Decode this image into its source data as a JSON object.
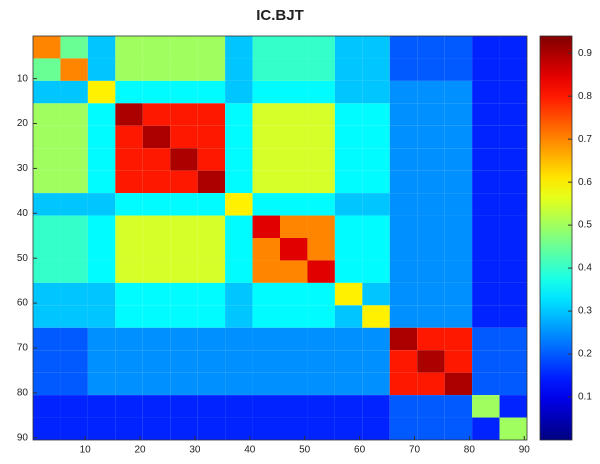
{
  "chart_data": {
    "type": "heatmap",
    "title": "IC.BJT",
    "x_edges": [
      0.5,
      5.5,
      10.5,
      15.5,
      20.5,
      25.5,
      30.5,
      35.5,
      40.5,
      45.5,
      50.5,
      55.5,
      60.5,
      65.5,
      70.5,
      75.5,
      80.5,
      85.5,
      90.5
    ],
    "y_edges": [
      0.5,
      5.5,
      10.5,
      15.5,
      20.5,
      25.5,
      30.5,
      35.5,
      40.5,
      45.5,
      50.5,
      55.5,
      60.5,
      65.5,
      70.5,
      75.5,
      80.5,
      85.5,
      90.5
    ],
    "z": [
      [
        0.7,
        0.45,
        0.3,
        0.5,
        0.5,
        0.5,
        0.5,
        0.3,
        0.4,
        0.4,
        0.4,
        0.3,
        0.3,
        0.2,
        0.2,
        0.2,
        0.15,
        0.15
      ],
      [
        0.45,
        0.7,
        0.3,
        0.5,
        0.5,
        0.5,
        0.5,
        0.3,
        0.4,
        0.4,
        0.4,
        0.3,
        0.3,
        0.2,
        0.2,
        0.2,
        0.15,
        0.15
      ],
      [
        0.3,
        0.3,
        0.6,
        0.35,
        0.35,
        0.35,
        0.35,
        0.3,
        0.35,
        0.35,
        0.35,
        0.3,
        0.3,
        0.25,
        0.25,
        0.25,
        0.15,
        0.15
      ],
      [
        0.5,
        0.5,
        0.35,
        0.9,
        0.8,
        0.8,
        0.8,
        0.35,
        0.55,
        0.55,
        0.55,
        0.35,
        0.35,
        0.25,
        0.25,
        0.25,
        0.15,
        0.15
      ],
      [
        0.5,
        0.5,
        0.35,
        0.8,
        0.9,
        0.8,
        0.8,
        0.35,
        0.55,
        0.55,
        0.55,
        0.35,
        0.35,
        0.25,
        0.25,
        0.25,
        0.15,
        0.15
      ],
      [
        0.5,
        0.5,
        0.35,
        0.8,
        0.8,
        0.9,
        0.8,
        0.35,
        0.55,
        0.55,
        0.55,
        0.35,
        0.35,
        0.25,
        0.25,
        0.25,
        0.15,
        0.15
      ],
      [
        0.5,
        0.5,
        0.35,
        0.8,
        0.8,
        0.8,
        0.9,
        0.35,
        0.55,
        0.55,
        0.55,
        0.35,
        0.35,
        0.25,
        0.25,
        0.25,
        0.15,
        0.15
      ],
      [
        0.3,
        0.3,
        0.3,
        0.35,
        0.35,
        0.35,
        0.35,
        0.6,
        0.35,
        0.35,
        0.35,
        0.3,
        0.3,
        0.25,
        0.25,
        0.25,
        0.15,
        0.15
      ],
      [
        0.4,
        0.4,
        0.35,
        0.55,
        0.55,
        0.55,
        0.55,
        0.35,
        0.85,
        0.7,
        0.7,
        0.35,
        0.35,
        0.25,
        0.25,
        0.25,
        0.15,
        0.15
      ],
      [
        0.4,
        0.4,
        0.35,
        0.55,
        0.55,
        0.55,
        0.55,
        0.35,
        0.7,
        0.85,
        0.7,
        0.35,
        0.35,
        0.25,
        0.25,
        0.25,
        0.15,
        0.15
      ],
      [
        0.4,
        0.4,
        0.35,
        0.55,
        0.55,
        0.55,
        0.55,
        0.35,
        0.7,
        0.7,
        0.85,
        0.35,
        0.35,
        0.25,
        0.25,
        0.25,
        0.15,
        0.15
      ],
      [
        0.3,
        0.3,
        0.3,
        0.35,
        0.35,
        0.35,
        0.35,
        0.3,
        0.35,
        0.35,
        0.35,
        0.6,
        0.3,
        0.25,
        0.25,
        0.25,
        0.15,
        0.15
      ],
      [
        0.3,
        0.3,
        0.3,
        0.35,
        0.35,
        0.35,
        0.35,
        0.3,
        0.35,
        0.35,
        0.35,
        0.3,
        0.6,
        0.25,
        0.25,
        0.25,
        0.15,
        0.15
      ],
      [
        0.2,
        0.2,
        0.25,
        0.25,
        0.25,
        0.25,
        0.25,
        0.25,
        0.25,
        0.25,
        0.25,
        0.25,
        0.25,
        0.9,
        0.8,
        0.8,
        0.2,
        0.2
      ],
      [
        0.2,
        0.2,
        0.25,
        0.25,
        0.25,
        0.25,
        0.25,
        0.25,
        0.25,
        0.25,
        0.25,
        0.25,
        0.25,
        0.8,
        0.9,
        0.8,
        0.2,
        0.2
      ],
      [
        0.2,
        0.2,
        0.25,
        0.25,
        0.25,
        0.25,
        0.25,
        0.25,
        0.25,
        0.25,
        0.25,
        0.25,
        0.25,
        0.8,
        0.8,
        0.9,
        0.2,
        0.2
      ],
      [
        0.15,
        0.15,
        0.15,
        0.15,
        0.15,
        0.15,
        0.15,
        0.15,
        0.15,
        0.15,
        0.15,
        0.15,
        0.15,
        0.2,
        0.2,
        0.2,
        0.5,
        0.15
      ],
      [
        0.15,
        0.15,
        0.15,
        0.15,
        0.15,
        0.15,
        0.15,
        0.15,
        0.15,
        0.15,
        0.15,
        0.15,
        0.15,
        0.2,
        0.2,
        0.2,
        0.15,
        0.5
      ]
    ],
    "xlim": [
      0.5,
      90.5
    ],
    "xticks": [
      10,
      20,
      30,
      40,
      50,
      60,
      70,
      80,
      90
    ],
    "ylim": [
      0.5,
      90.5
    ],
    "yticks": [
      10,
      20,
      30,
      40,
      50,
      60,
      70,
      80,
      90
    ],
    "y_reversed": true,
    "colormap": "jet",
    "clim": [
      0,
      0.94
    ],
    "cticks": [
      0.1,
      0.2,
      0.3,
      0.4,
      0.5,
      0.6,
      0.7,
      0.8,
      0.9
    ]
  }
}
